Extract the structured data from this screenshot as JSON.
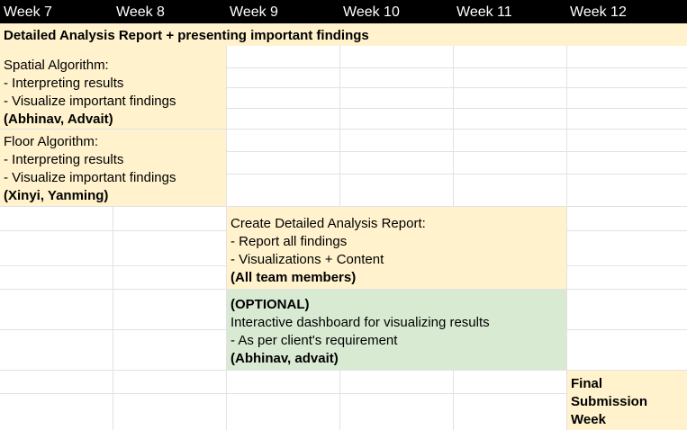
{
  "header": {
    "weeks": [
      "Week 7",
      "Week 8",
      "Week 9",
      "Week 10",
      "Week 11",
      "Week 12"
    ]
  },
  "colors": {
    "header_bg": "#000000",
    "header_text": "#ffffff",
    "task_yellow": "#fff2cc",
    "optional_green": "#d9ead3",
    "gridline": "#e2e2e2"
  },
  "blocks": {
    "banner": {
      "title": "Detailed Analysis Report + presenting important findings"
    },
    "spatial": {
      "title": "Spatial Algorithm:",
      "item1": "- Interpreting results",
      "item2": "- Visualize important findings",
      "owners": "(Abhinav, Advait)"
    },
    "floor": {
      "title": "Floor Algorithm:",
      "item1": "- Interpreting results",
      "item2": "- Visualize important findings",
      "owners": "(Xinyi, Yanming)"
    },
    "report": {
      "title": "Create Detailed Analysis Report:",
      "item1": "- Report all findings",
      "item2": "- Visualizations + Content",
      "owners": "(All team members)"
    },
    "dashboard": {
      "tag": "(OPTIONAL)",
      "title": "Interactive dashboard for visualizing results",
      "item1": "- As per client's requirement",
      "owners": "(Abhinav, advait)"
    },
    "final": {
      "line1": "Final",
      "line2": "Submission",
      "line3": "Week"
    }
  }
}
